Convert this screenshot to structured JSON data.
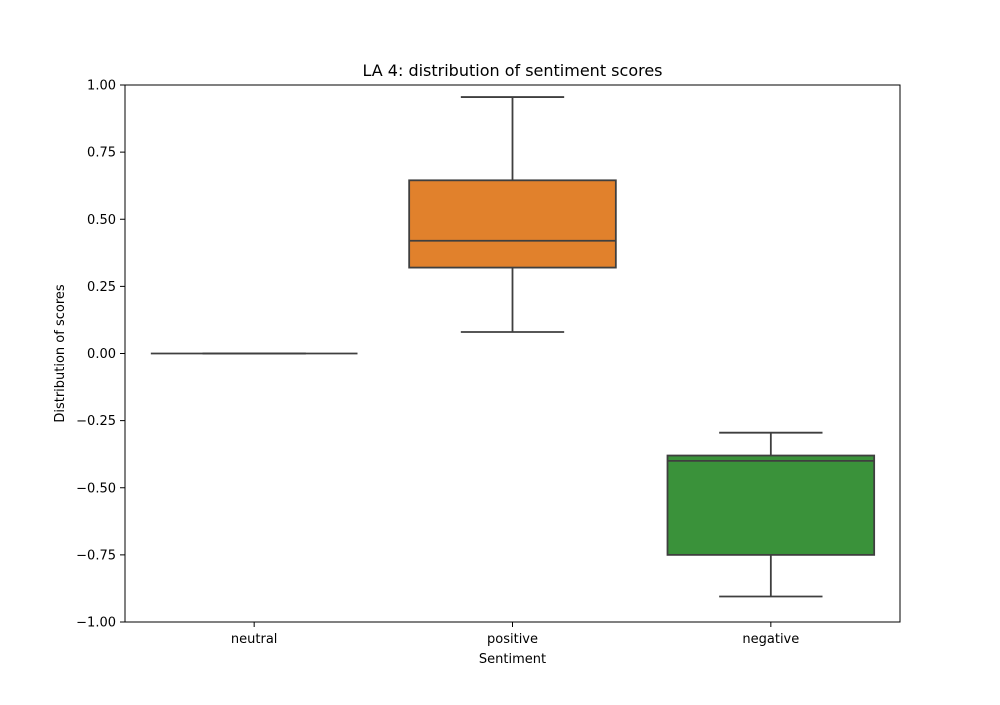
{
  "chart_data": {
    "type": "box",
    "title": "LA 4: distribution of sentiment scores",
    "xlabel": "Sentiment",
    "ylabel": "Distribution of scores",
    "ylim": [
      -1.0,
      1.0
    ],
    "yticks": [
      -1.0,
      -0.75,
      -0.5,
      -0.25,
      0.0,
      0.25,
      0.5,
      0.75,
      1.0
    ],
    "ytick_labels": [
      "−1.00",
      "−0.75",
      "−0.50",
      "−0.25",
      "0.00",
      "0.25",
      "0.50",
      "0.75",
      "1.00"
    ],
    "categories": [
      "neutral",
      "positive",
      "negative"
    ],
    "grid": false,
    "boxes": [
      {
        "category": "neutral",
        "whisker_low": 0.0,
        "q1": 0.0,
        "median": 0.0,
        "q3": 0.0,
        "whisker_high": 0.0,
        "color": "#1f77b4"
      },
      {
        "category": "positive",
        "whisker_low": 0.08,
        "q1": 0.32,
        "median": 0.42,
        "q3": 0.645,
        "whisker_high": 0.955,
        "color": "#e1812c"
      },
      {
        "category": "negative",
        "whisker_low": -0.905,
        "q1": -0.75,
        "median": -0.4,
        "q3": -0.38,
        "whisker_high": -0.295,
        "color": "#3a923a"
      }
    ],
    "line_color": "#3f3f3f"
  }
}
